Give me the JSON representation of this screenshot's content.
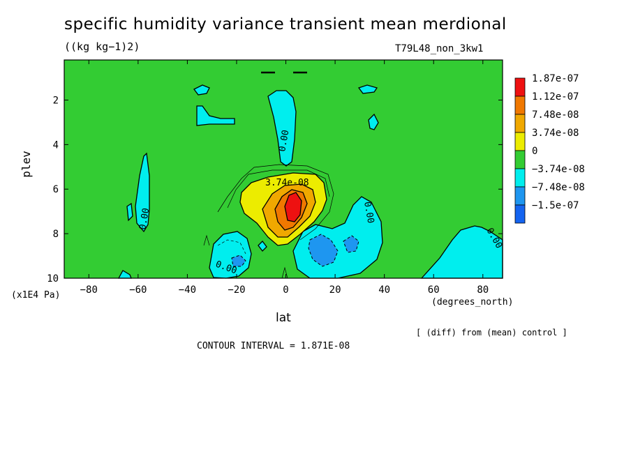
{
  "title": "specific humidity variance transient mean merdional",
  "units": "((kg kg−1)2)",
  "run": "T79L48_non_3kw1",
  "ylabel": "plev",
  "yunits": "(x1E4 Pa)",
  "xunits": "(degrees_north)",
  "xlabel": "lat",
  "diff_note": "[ (diff) from (mean) control ]",
  "contour_interval": "CONTOUR INTERVAL = 1.871E-08",
  "chart_data": {
    "type": "heatmap",
    "title": "specific humidity variance transient mean merdional",
    "xlabel": "lat",
    "ylabel": "plev",
    "xlim": [
      -90,
      88
    ],
    "ylim": [
      10,
      0.2
    ],
    "x_ticks": [
      -80,
      -60,
      -40,
      -20,
      0,
      20,
      40,
      60,
      80
    ],
    "y_ticks": [
      2,
      4,
      6,
      8,
      10
    ],
    "legend": {
      "levels": [
        "1.87e-07",
        "1.12e-07",
        "7.48e-08",
        "3.74e-08",
        "0",
        "−3.74e-08",
        "−7.48e-08",
        "−1.5e-07"
      ],
      "colors": [
        "#ee1111",
        "#f07800",
        "#f0a800",
        "#ecec00",
        "#33cc33",
        "#00eeee",
        "#1e96f0",
        "#1464f0"
      ]
    },
    "contour_labels": [
      {
        "text": "0.00",
        "lat": 3,
        "plev": 4.0
      },
      {
        "text": "0.00",
        "lat": -55,
        "plev": 7.5
      },
      {
        "text": "0.00",
        "lat": 35,
        "plev": 7.8
      },
      {
        "text": "0.00",
        "lat": -24,
        "plev": 9.5
      },
      {
        "text": "0.00",
        "lat": 86,
        "plev": 8.2
      },
      {
        "text": "3.74e-08",
        "lat": 3,
        "plev": 5.8
      }
    ],
    "regions": [
      {
        "level": "1.87e-07",
        "center": [
          4,
          6.9
        ]
      },
      {
        "level": "1.12e-07",
        "center": [
          3,
          6.8
        ]
      },
      {
        "level": "7.48e-08",
        "center": [
          3,
          6.7
        ]
      },
      {
        "level": "3.74e-08",
        "center": [
          2,
          6.5
        ]
      },
      {
        "level": "−3.74e-08",
        "center": [
          -57,
          7.0
        ]
      },
      {
        "level": "−3.74e-08",
        "center": [
          4,
          3.5
        ]
      },
      {
        "level": "−3.74e-08",
        "center": [
          -22,
          8.8
        ]
      },
      {
        "level": "−3.74e-08",
        "center": [
          25,
          8.5
        ]
      },
      {
        "level": "−3.74e-08",
        "center": [
          75,
          9.2
        ]
      },
      {
        "level": "−7.48e-08",
        "center": [
          17,
          8.7
        ]
      },
      {
        "level": "−7.48e-08",
        "center": [
          -18,
          9.2
        ]
      }
    ]
  }
}
